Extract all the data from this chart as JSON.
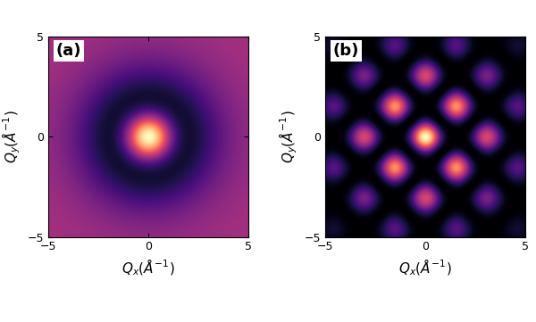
{
  "label_a": "(a)",
  "label_b": "(b)",
  "xlabel_a": "$Q_x$(Å$^{-1}$)",
  "ylabel_a": "$Q_y$(Å$^{-1}$)",
  "xlabel_b": "$Q_x$(Å$^{-1}$)",
  "ylabel_b": "$Q_y$(Å$^{-1}$)",
  "xlim": [
    -5,
    5
  ],
  "ylim": [
    -5,
    5
  ],
  "xticks": [
    -5,
    0,
    5
  ],
  "yticks": [
    -5,
    0,
    5
  ],
  "cmap": "magma",
  "figsize": [
    6.0,
    3.61
  ],
  "dpi": 100,
  "panel_a": {
    "sigma_inner": 0.85,
    "sigma_outer": 2.2,
    "amp_inner": 1.0,
    "amp_outer": 0.55,
    "background": 0.38
  },
  "panel_b": {
    "d": 1.45,
    "sigma_broad": 2.8,
    "sigma_narrow": 1.2
  }
}
